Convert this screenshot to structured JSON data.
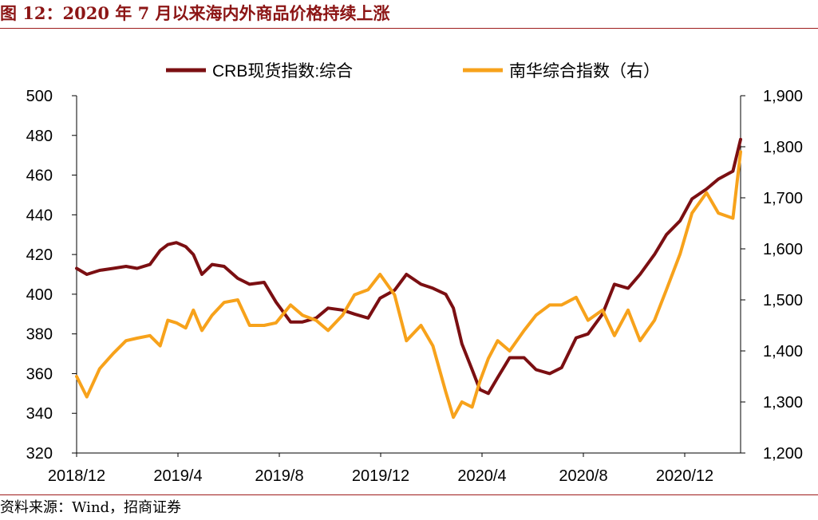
{
  "title": "图 12：2020 年 7 月以来海内外商品价格持续上涨",
  "source": "资料来源：Wind，招商证券",
  "chart_data": {
    "type": "line",
    "title": "图 12：2020 年 7 月以来海内外商品价格持续上涨",
    "x_tick_labels": [
      "2018/12",
      "2019/4",
      "2019/8",
      "2019/12",
      "2020/4",
      "2020/8",
      "2020/12"
    ],
    "x_range": [
      "2018-12-24",
      "2021-02-10"
    ],
    "y_left": {
      "range": [
        320,
        500
      ],
      "ticks": [
        320,
        340,
        360,
        380,
        400,
        420,
        440,
        460,
        480,
        500
      ],
      "tick_labels": [
        "320",
        "340",
        "360",
        "380",
        "400",
        "420",
        "440",
        "460",
        "480",
        "500"
      ]
    },
    "y_right": {
      "range": [
        1200,
        1900
      ],
      "ticks": [
        1200,
        1300,
        1400,
        1500,
        1600,
        1700,
        1800,
        1900
      ],
      "tick_labels": [
        "1,200",
        "1,300",
        "1,400",
        "1,500",
        "1,600",
        "1,700",
        "1,800",
        "1,900"
      ]
    },
    "grid": false,
    "legend_position": "top",
    "series": [
      {
        "name": "CRB现货指数:综合",
        "axis": "left",
        "color": "#7b0f12",
        "x": [
          "2018-12-24",
          "2019-01-05",
          "2019-01-20",
          "2019-02-05",
          "2019-02-20",
          "2019-03-05",
          "2019-03-20",
          "2019-04-01",
          "2019-04-10",
          "2019-04-20",
          "2019-05-01",
          "2019-05-10",
          "2019-05-20",
          "2019-06-01",
          "2019-06-15",
          "2019-07-01",
          "2019-07-15",
          "2019-08-01",
          "2019-08-15",
          "2019-09-01",
          "2019-09-15",
          "2019-10-01",
          "2019-10-15",
          "2019-11-01",
          "2019-11-15",
          "2019-12-01",
          "2019-12-15",
          "2020-01-01",
          "2020-01-15",
          "2020-02-01",
          "2020-02-15",
          "2020-03-01",
          "2020-03-10",
          "2020-03-20",
          "2020-04-01",
          "2020-04-10",
          "2020-04-20",
          "2020-05-01",
          "2020-05-15",
          "2020-06-01",
          "2020-06-15",
          "2020-07-01",
          "2020-07-15",
          "2020-08-01",
          "2020-08-15",
          "2020-09-01",
          "2020-09-15",
          "2020-10-01",
          "2020-10-15",
          "2020-11-01",
          "2020-11-15",
          "2020-12-01",
          "2020-12-15",
          "2021-01-01",
          "2021-01-15",
          "2021-02-01",
          "2021-02-10"
        ],
        "values": [
          413,
          410,
          412,
          413,
          414,
          413,
          415,
          422,
          425,
          426,
          424,
          420,
          410,
          415,
          414,
          408,
          405,
          406,
          396,
          386,
          386,
          388,
          393,
          392,
          390,
          388,
          398,
          402,
          410,
          405,
          403,
          400,
          393,
          375,
          362,
          352,
          350,
          358,
          368,
          368,
          362,
          360,
          363,
          378,
          380,
          390,
          405,
          403,
          410,
          420,
          430,
          437,
          448,
          453,
          458,
          462,
          478
        ]
      },
      {
        "name": "南华综合指数（右）",
        "axis": "right",
        "color": "#f7a21b",
        "x": [
          "2018-12-24",
          "2019-01-05",
          "2019-01-20",
          "2019-02-05",
          "2019-02-20",
          "2019-03-05",
          "2019-03-20",
          "2019-04-01",
          "2019-04-10",
          "2019-04-20",
          "2019-05-01",
          "2019-05-10",
          "2019-05-20",
          "2019-06-01",
          "2019-06-15",
          "2019-07-01",
          "2019-07-15",
          "2019-08-01",
          "2019-08-15",
          "2019-09-01",
          "2019-09-15",
          "2019-10-01",
          "2019-10-15",
          "2019-11-01",
          "2019-11-15",
          "2019-12-01",
          "2019-12-15",
          "2020-01-01",
          "2020-01-15",
          "2020-02-01",
          "2020-02-15",
          "2020-03-01",
          "2020-03-10",
          "2020-03-20",
          "2020-04-01",
          "2020-04-10",
          "2020-04-20",
          "2020-05-01",
          "2020-05-15",
          "2020-06-01",
          "2020-06-15",
          "2020-07-01",
          "2020-07-15",
          "2020-08-01",
          "2020-08-15",
          "2020-09-01",
          "2020-09-15",
          "2020-10-01",
          "2020-10-15",
          "2020-11-01",
          "2020-11-15",
          "2020-12-01",
          "2020-12-15",
          "2021-01-01",
          "2021-01-15",
          "2021-02-01",
          "2021-02-10"
        ],
        "values": [
          1350,
          1310,
          1365,
          1395,
          1420,
          1425,
          1430,
          1410,
          1460,
          1455,
          1445,
          1480,
          1440,
          1470,
          1495,
          1500,
          1450,
          1450,
          1455,
          1490,
          1470,
          1460,
          1440,
          1470,
          1510,
          1520,
          1550,
          1510,
          1420,
          1450,
          1410,
          1320,
          1270,
          1300,
          1290,
          1340,
          1385,
          1420,
          1400,
          1440,
          1470,
          1490,
          1490,
          1505,
          1460,
          1480,
          1430,
          1480,
          1420,
          1460,
          1520,
          1590,
          1670,
          1710,
          1670,
          1660,
          1790
        ]
      }
    ]
  }
}
